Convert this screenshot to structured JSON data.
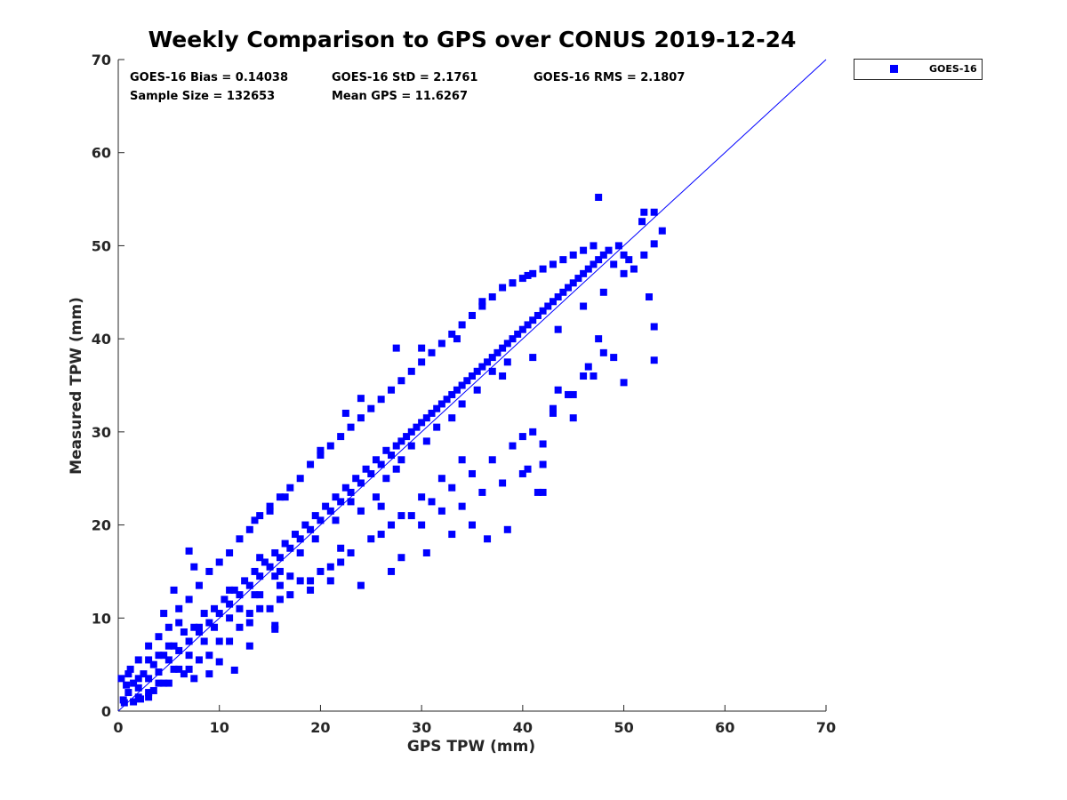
{
  "chart_data": {
    "type": "scatter",
    "title": "Weekly Comparison to GPS over CONUS 2019-12-24",
    "xlabel": "GPS TPW (mm)",
    "ylabel": "Measured TPW (mm)",
    "xlim": [
      0,
      70
    ],
    "ylim": [
      0,
      70
    ],
    "xticks": [
      "0",
      "10",
      "20",
      "30",
      "40",
      "50",
      "60",
      "70"
    ],
    "yticks": [
      "0",
      "10",
      "20",
      "30",
      "40",
      "50",
      "60",
      "70"
    ],
    "grid": false,
    "legend_position": "outside top-right",
    "stats": {
      "bias": "GOES-16 Bias = 0.14038",
      "std": "GOES-16 StD = 2.1761",
      "rms": "GOES-16 RMS = 2.1807",
      "sample_size": "Sample Size = 132653",
      "mean_gps": "Mean GPS = 11.6267"
    },
    "reference_line": {
      "type": "one-to-one",
      "x": [
        0,
        70
      ],
      "y": [
        0,
        70
      ]
    },
    "series": [
      {
        "name": "GOES-16",
        "color": "#0000ff",
        "marker": "square",
        "points": [
          [
            0.5,
            1.2
          ],
          [
            1.0,
            2.0
          ],
          [
            1.5,
            3.0
          ],
          [
            2.0,
            2.5
          ],
          [
            2.5,
            4.0
          ],
          [
            3.0,
            3.5
          ],
          [
            3.5,
            5.0
          ],
          [
            4.0,
            4.2
          ],
          [
            4.5,
            6.0
          ],
          [
            5.0,
            5.5
          ],
          [
            5.5,
            7.0
          ],
          [
            6.0,
            6.5
          ],
          [
            6.5,
            8.5
          ],
          [
            7.0,
            7.5
          ],
          [
            7.5,
            9.0
          ],
          [
            8.0,
            8.5
          ],
          [
            8.5,
            10.5
          ],
          [
            9.0,
            9.5
          ],
          [
            9.5,
            11.0
          ],
          [
            10.0,
            10.5
          ],
          [
            10.5,
            12.0
          ],
          [
            11.0,
            11.5
          ],
          [
            11.5,
            13.0
          ],
          [
            12.0,
            12.5
          ],
          [
            12.5,
            14.0
          ],
          [
            13.0,
            13.5
          ],
          [
            13.5,
            15.0
          ],
          [
            14.0,
            14.5
          ],
          [
            14.5,
            16.0
          ],
          [
            15.0,
            15.5
          ],
          [
            15.5,
            17.0
          ],
          [
            16.0,
            16.5
          ],
          [
            16.5,
            18.0
          ],
          [
            17.0,
            17.5
          ],
          [
            17.5,
            19.0
          ],
          [
            18.0,
            18.5
          ],
          [
            18.5,
            20.0
          ],
          [
            19.0,
            19.5
          ],
          [
            19.5,
            21.0
          ],
          [
            20.0,
            20.5
          ],
          [
            20.5,
            22.0
          ],
          [
            21.0,
            21.5
          ],
          [
            21.5,
            23.0
          ],
          [
            22.0,
            22.5
          ],
          [
            22.5,
            24.0
          ],
          [
            23.0,
            23.5
          ],
          [
            23.5,
            25.0
          ],
          [
            24.0,
            24.5
          ],
          [
            24.5,
            26.0
          ],
          [
            25.0,
            25.5
          ],
          [
            25.5,
            27.0
          ],
          [
            26.0,
            26.5
          ],
          [
            26.5,
            28.0
          ],
          [
            27.0,
            27.5
          ],
          [
            27.5,
            28.5
          ],
          [
            28.0,
            29.0
          ],
          [
            28.5,
            29.5
          ],
          [
            29.0,
            30.0
          ],
          [
            29.5,
            30.5
          ],
          [
            30.0,
            31.0
          ],
          [
            30.5,
            31.5
          ],
          [
            31.0,
            32.0
          ],
          [
            31.5,
            32.5
          ],
          [
            32.0,
            33.0
          ],
          [
            32.5,
            33.5
          ],
          [
            33.0,
            34.0
          ],
          [
            33.5,
            34.5
          ],
          [
            34.0,
            35.0
          ],
          [
            34.5,
            35.5
          ],
          [
            35.0,
            36.0
          ],
          [
            35.5,
            36.5
          ],
          [
            36.0,
            37.0
          ],
          [
            36.5,
            37.5
          ],
          [
            37.0,
            38.0
          ],
          [
            37.5,
            38.5
          ],
          [
            38.0,
            39.0
          ],
          [
            38.5,
            39.5
          ],
          [
            39.0,
            40.0
          ],
          [
            39.5,
            40.5
          ],
          [
            40.0,
            41.0
          ],
          [
            40.5,
            41.5
          ],
          [
            41.0,
            42.0
          ],
          [
            41.5,
            42.5
          ],
          [
            42.0,
            43.0
          ],
          [
            42.5,
            43.5
          ],
          [
            43.0,
            44.0
          ],
          [
            43.5,
            44.5
          ],
          [
            44.0,
            45.0
          ],
          [
            44.5,
            45.5
          ],
          [
            45.0,
            46.0
          ],
          [
            45.5,
            46.5
          ],
          [
            46.0,
            47.0
          ],
          [
            46.5,
            47.5
          ],
          [
            47.0,
            48.0
          ],
          [
            47.5,
            48.5
          ],
          [
            48.0,
            49.0
          ],
          [
            48.5,
            49.5
          ],
          [
            49.0,
            48.0
          ],
          [
            49.5,
            50.0
          ],
          [
            50.0,
            49.0
          ],
          [
            50.5,
            48.5
          ],
          [
            51.0,
            47.5
          ],
          [
            52.0,
            49.0
          ],
          [
            1.0,
            4.0
          ],
          [
            2.0,
            5.5
          ],
          [
            3.0,
            7.0
          ],
          [
            4.0,
            8.0
          ],
          [
            5.0,
            9.0
          ],
          [
            6.0,
            11.0
          ],
          [
            7.0,
            12.0
          ],
          [
            8.0,
            13.5
          ],
          [
            9.0,
            15.0
          ],
          [
            10.0,
            16.0
          ],
          [
            11.0,
            17.0
          ],
          [
            12.0,
            18.5
          ],
          [
            13.0,
            19.5
          ],
          [
            14.0,
            21.0
          ],
          [
            15.0,
            21.5
          ],
          [
            16.0,
            23.0
          ],
          [
            17.0,
            24.0
          ],
          [
            18.0,
            25.0
          ],
          [
            19.0,
            26.5
          ],
          [
            20.0,
            27.5
          ],
          [
            21.0,
            28.5
          ],
          [
            22.0,
            29.5
          ],
          [
            23.0,
            30.5
          ],
          [
            24.0,
            31.5
          ],
          [
            25.0,
            32.5
          ],
          [
            26.0,
            33.5
          ],
          [
            27.0,
            34.5
          ],
          [
            28.0,
            35.5
          ],
          [
            29.0,
            36.5
          ],
          [
            30.0,
            37.5
          ],
          [
            31.0,
            38.5
          ],
          [
            32.0,
            39.5
          ],
          [
            33.0,
            40.5
          ],
          [
            34.0,
            41.5
          ],
          [
            35.0,
            42.5
          ],
          [
            36.0,
            43.5
          ],
          [
            37.0,
            44.5
          ],
          [
            38.0,
            45.5
          ],
          [
            39.0,
            46.0
          ],
          [
            40.0,
            46.5
          ],
          [
            41.0,
            47.0
          ],
          [
            42.0,
            47.5
          ],
          [
            43.0,
            48.0
          ],
          [
            44.0,
            48.5
          ],
          [
            45.0,
            49.0
          ],
          [
            46.0,
            49.5
          ],
          [
            47.0,
            50.0
          ],
          [
            3.0,
            1.5
          ],
          [
            5.0,
            3.0
          ],
          [
            7.0,
            4.5
          ],
          [
            9.0,
            6.0
          ],
          [
            11.0,
            7.5
          ],
          [
            13.0,
            9.5
          ],
          [
            15.0,
            11.0
          ],
          [
            17.0,
            12.5
          ],
          [
            19.0,
            14.0
          ],
          [
            21.0,
            15.5
          ],
          [
            23.0,
            17.0
          ],
          [
            25.0,
            18.5
          ],
          [
            27.0,
            20.0
          ],
          [
            29.0,
            21.0
          ],
          [
            31.0,
            22.5
          ],
          [
            33.0,
            24.0
          ],
          [
            35.0,
            25.5
          ],
          [
            37.0,
            27.0
          ],
          [
            39.0,
            28.5
          ],
          [
            41.0,
            30.0
          ],
          [
            43.0,
            32.0
          ],
          [
            45.0,
            34.0
          ],
          [
            47.0,
            36.0
          ],
          [
            49.0,
            38.0
          ],
          [
            26.0,
            19.0
          ],
          [
            28.0,
            21.0
          ],
          [
            30.0,
            20.0
          ],
          [
            32.0,
            21.5
          ],
          [
            34.0,
            22.0
          ],
          [
            36.0,
            23.5
          ],
          [
            38.0,
            24.5
          ],
          [
            40.0,
            25.5
          ],
          [
            42.0,
            23.5
          ],
          [
            36.5,
            18.5
          ],
          [
            38.5,
            19.5
          ],
          [
            35.0,
            20.0
          ],
          [
            33.0,
            19.0
          ],
          [
            24.0,
            13.5
          ],
          [
            21.0,
            14.0
          ],
          [
            19.0,
            13.0
          ],
          [
            22.0,
            16.0
          ],
          [
            26.0,
            22.0
          ],
          [
            30.0,
            23.0
          ],
          [
            32.0,
            25.0
          ],
          [
            34.0,
            27.0
          ],
          [
            28.0,
            16.5
          ],
          [
            30.5,
            17.0
          ],
          [
            27.0,
            15.0
          ],
          [
            16.0,
            15.0
          ],
          [
            17.0,
            14.5
          ],
          [
            14.0,
            16.5
          ],
          [
            11.0,
            13.0
          ],
          [
            6.0,
            9.5
          ],
          [
            4.0,
            6.0
          ],
          [
            2.0,
            3.5
          ],
          [
            1.5,
            1.0
          ],
          [
            0.3,
            3.5
          ],
          [
            0.8,
            2.8
          ],
          [
            1.2,
            4.5
          ],
          [
            0.6,
            0.9
          ],
          [
            2.2,
            1.3
          ],
          [
            3.5,
            2.2
          ],
          [
            4.5,
            3.0
          ],
          [
            6.5,
            4.0
          ],
          [
            8.0,
            5.5
          ],
          [
            10.0,
            7.5
          ],
          [
            12.0,
            9.0
          ],
          [
            14.0,
            11.0
          ],
          [
            16.0,
            12.0
          ],
          [
            18.0,
            14.0
          ],
          [
            20.0,
            15.0
          ],
          [
            22.0,
            17.5
          ],
          [
            47.5,
            55.2
          ],
          [
            52.0,
            53.6
          ],
          [
            53.0,
            53.6
          ],
          [
            51.8,
            52.6
          ],
          [
            53.8,
            51.6
          ],
          [
            53.0,
            50.2
          ],
          [
            52.5,
            44.5
          ],
          [
            53.0,
            41.3
          ],
          [
            53.0,
            37.7
          ],
          [
            50.0,
            35.3
          ],
          [
            48.0,
            38.5
          ],
          [
            46.0,
            36.0
          ],
          [
            44.5,
            34.0
          ],
          [
            43.0,
            32.5
          ],
          [
            42.0,
            28.7
          ],
          [
            42.0,
            26.5
          ],
          [
            40.0,
            29.5
          ],
          [
            41.5,
            23.5
          ],
          [
            40.5,
            26.0
          ],
          [
            43.5,
            34.5
          ],
          [
            45.0,
            31.5
          ],
          [
            46.5,
            37.0
          ],
          [
            47.5,
            40.0
          ],
          [
            30.0,
            39.0
          ],
          [
            33.5,
            40.0
          ],
          [
            36.0,
            44.0
          ],
          [
            39.0,
            46.0
          ],
          [
            40.5,
            46.8
          ],
          [
            27.5,
            39.0
          ],
          [
            24.0,
            33.6
          ],
          [
            22.5,
            32.0
          ],
          [
            20.0,
            28.0
          ],
          [
            16.5,
            23.0
          ],
          [
            13.5,
            20.5
          ],
          [
            15.0,
            22.0
          ],
          [
            7.5,
            15.5
          ],
          [
            5.5,
            13.0
          ],
          [
            4.5,
            10.5
          ],
          [
            7.0,
            17.2
          ],
          [
            13.0,
            10.5
          ],
          [
            14.0,
            12.5
          ],
          [
            12.0,
            11.0
          ],
          [
            16.0,
            13.5
          ],
          [
            8.0,
            9.0
          ],
          [
            6.0,
            4.5
          ],
          [
            5.0,
            7.0
          ],
          [
            3.0,
            5.5
          ],
          [
            15.5,
            8.8
          ],
          [
            15.5,
            9.2
          ],
          [
            11.5,
            4.4
          ],
          [
            10.0,
            5.3
          ],
          [
            9.0,
            4.0
          ],
          [
            7.5,
            3.5
          ],
          [
            13.0,
            7.0
          ],
          [
            26.5,
            25.0
          ],
          [
            28.0,
            27.0
          ],
          [
            25.5,
            23.0
          ],
          [
            24.0,
            21.5
          ],
          [
            30.5,
            29.0
          ],
          [
            33.0,
            31.5
          ],
          [
            35.5,
            34.5
          ],
          [
            38.0,
            36.0
          ],
          [
            41.0,
            38.0
          ],
          [
            43.5,
            41.0
          ],
          [
            46.0,
            43.5
          ],
          [
            48.0,
            45.0
          ],
          [
            50.0,
            47.0
          ],
          [
            38.5,
            37.5
          ],
          [
            37.0,
            36.5
          ],
          [
            34.0,
            33.0
          ],
          [
            31.5,
            30.5
          ],
          [
            29.0,
            28.5
          ],
          [
            27.5,
            26.0
          ],
          [
            23.0,
            22.5
          ],
          [
            21.5,
            20.5
          ],
          [
            19.5,
            18.5
          ],
          [
            18.0,
            17.0
          ],
          [
            15.5,
            14.5
          ],
          [
            13.5,
            12.5
          ],
          [
            11.0,
            10.0
          ],
          [
            9.5,
            9.0
          ],
          [
            8.5,
            7.5
          ],
          [
            7.0,
            6.0
          ],
          [
            5.5,
            4.5
          ],
          [
            4.0,
            3.0
          ],
          [
            3.0,
            2.0
          ],
          [
            2.0,
            1.5
          ]
        ]
      }
    ]
  }
}
